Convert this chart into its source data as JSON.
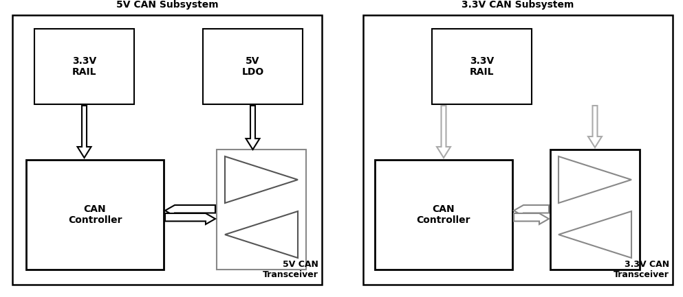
{
  "bg_color": "#ffffff",
  "left_subsystem_label": "5V CAN Subsystem",
  "right_subsystem_label": "3.3V CAN Subsystem",
  "left_transceiver_label": "5V CAN\nTransceiver",
  "right_transceiver_label": "3.3V CAN\nTransceiver",
  "figsize": [
    9.93,
    4.33
  ],
  "dpi": 100
}
